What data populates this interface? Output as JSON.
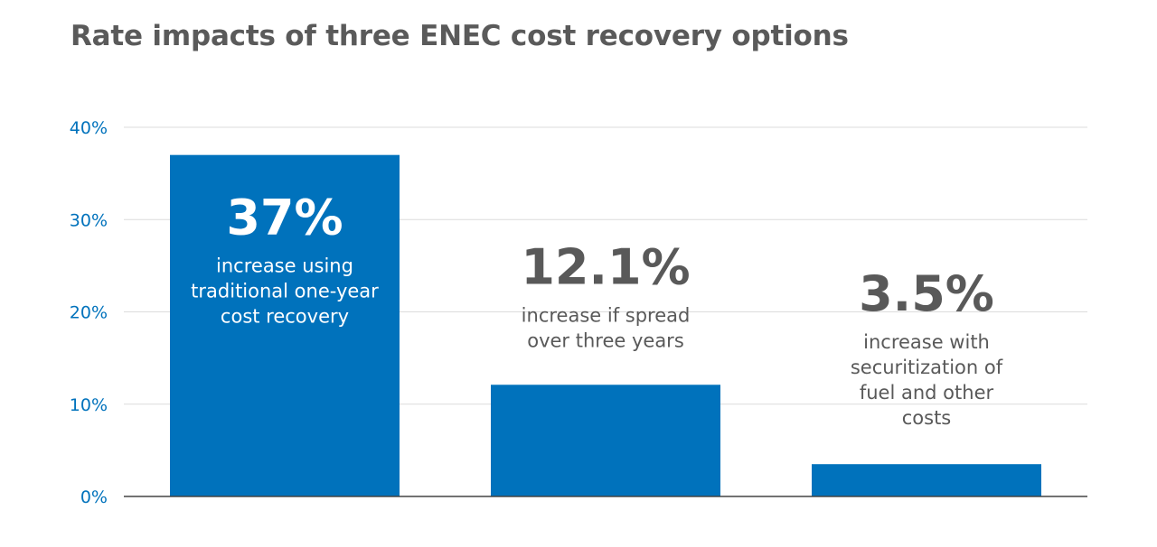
{
  "chart_data": {
    "type": "bar",
    "title": "Rate impacts of three ENEC cost recovery options",
    "xlabel": "",
    "ylabel": "",
    "ylim": [
      0,
      40
    ],
    "yticks": [
      "0%",
      "10%",
      "20%",
      "30%",
      "40%"
    ],
    "grid": true,
    "legend": "none",
    "values": [
      37,
      12.1,
      3.5
    ],
    "bars": [
      {
        "value": 37,
        "value_label": "37%",
        "label_lines": [
          "increase using",
          "traditional one-year",
          "cost recovery"
        ],
        "label_inside": true
      },
      {
        "value": 12.1,
        "value_label": "12.1%",
        "label_lines": [
          "increase if spread",
          "over three years"
        ],
        "label_inside": false
      },
      {
        "value": 3.5,
        "value_label": "3.5%",
        "label_lines": [
          "increase with",
          "securitization of",
          "fuel and other",
          "costs"
        ],
        "label_inside": false
      }
    ],
    "colors": {
      "bar": "#0072bc",
      "tick_label": "#0072bc",
      "title": "#5a5a5a",
      "annotation": "#595959",
      "label_on_bar": "#ffffff",
      "grid": "#dcdcdc",
      "axis": "#444444"
    }
  }
}
